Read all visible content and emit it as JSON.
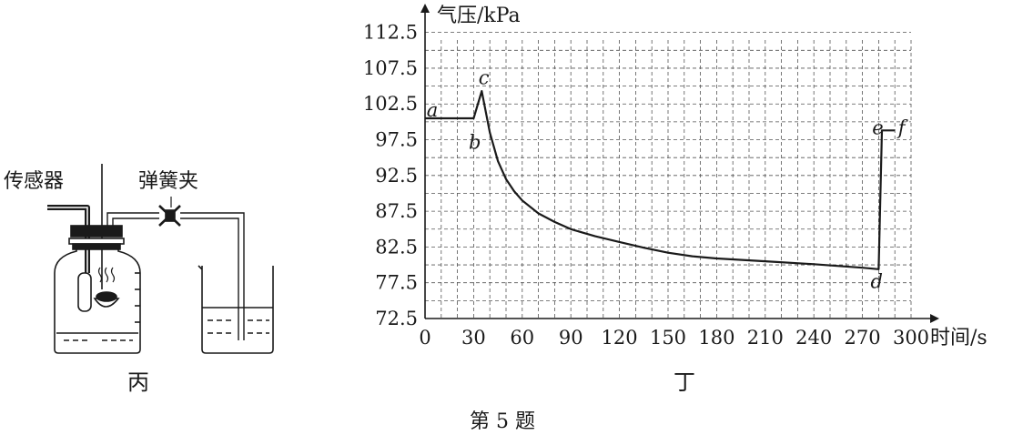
{
  "figure_caption": "第 5 题",
  "apparatus": {
    "label": "丙",
    "sensor_label": "传感器",
    "clamp_label": "弹簧夹"
  },
  "chart_panel_label": "丁",
  "chart_data": {
    "type": "line",
    "ylabel": "气压/kPa",
    "xlabel": "时间/s",
    "x_ticks": [
      0,
      30,
      60,
      90,
      120,
      150,
      180,
      210,
      240,
      270,
      300
    ],
    "y_ticks": [
      "112.5",
      "107.5",
      "102.5",
      "97.5",
      "92.5",
      "87.5",
      "82.5",
      "77.5",
      "72.5"
    ],
    "xlim": [
      0,
      300
    ],
    "ylim": [
      72.5,
      115
    ],
    "grid": "dashed",
    "series": [
      {
        "x": [
          0,
          30,
          35,
          40,
          45,
          50,
          55,
          60,
          70,
          80,
          90,
          105,
          120,
          135,
          150,
          165,
          180,
          210,
          240,
          270,
          280,
          282,
          290
        ],
        "y": [
          100.5,
          100.5,
          104.3,
          98.5,
          94.5,
          92.0,
          90.3,
          89.0,
          87.2,
          86.0,
          85.0,
          84.0,
          83.2,
          82.4,
          81.7,
          81.2,
          80.9,
          80.5,
          80.1,
          79.6,
          79.4,
          98.8,
          98.8
        ]
      }
    ],
    "annotations": [
      {
        "text": "a",
        "x": 1,
        "y": 101.5
      },
      {
        "text": "b",
        "x": 27,
        "y": 97
      },
      {
        "text": "c",
        "x": 33,
        "y": 106
      },
      {
        "text": "d",
        "x": 275,
        "y": 77.5
      },
      {
        "text": "e",
        "x": 276,
        "y": 99
      },
      {
        "text": "f",
        "x": 292,
        "y": 99
      }
    ]
  }
}
